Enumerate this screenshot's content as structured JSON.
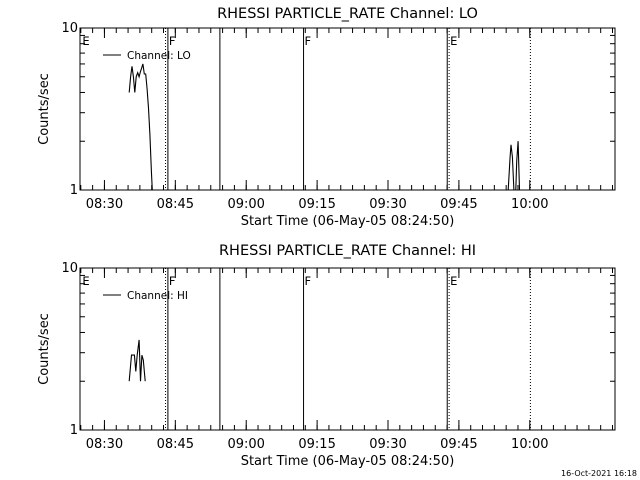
{
  "footer": {
    "date_stamp": "16-Oct-2021 16:18"
  },
  "chart_data": [
    {
      "type": "line",
      "title": "RHESSI PARTICLE_RATE Channel: LO",
      "xlabel": "Start Time (06-May-05 08:24:50)",
      "ylabel": "Counts/sec",
      "x_unit": "minutes since 08:24:50",
      "xlim": [
        0,
        113.2
      ],
      "ylim": [
        1,
        10
      ],
      "y_scale": "log",
      "x_ticks": [
        {
          "t": 5.17,
          "label": "08:30"
        },
        {
          "t": 20.17,
          "label": "08:45"
        },
        {
          "t": 35.17,
          "label": "09:00"
        },
        {
          "t": 50.17,
          "label": "09:15"
        },
        {
          "t": 65.17,
          "label": "09:30"
        },
        {
          "t": 80.17,
          "label": "09:45"
        },
        {
          "t": 95.17,
          "label": "10:00"
        }
      ],
      "y_ticks": [
        {
          "v": 1,
          "label": "1"
        },
        {
          "v": 10,
          "label": "10"
        }
      ],
      "legend": {
        "label": "Channel: LO",
        "position": "top-left"
      },
      "flags": [
        {
          "t": 0.3,
          "text": "E",
          "style": "none"
        },
        {
          "t": 18.1,
          "text": "",
          "style": "dotted"
        },
        {
          "t": 18.6,
          "text": "F",
          "style": "solid"
        },
        {
          "t": 29.6,
          "text": "",
          "style": "solid"
        },
        {
          "t": 47.3,
          "text": "F",
          "style": "solid"
        },
        {
          "t": 77.7,
          "text": "",
          "style": "solid"
        },
        {
          "t": 78.1,
          "text": "E",
          "style": "dotted"
        },
        {
          "t": 95.3,
          "text": "",
          "style": "dotted"
        }
      ],
      "series": [
        {
          "points": [
            [
              10.4,
              4.0
            ],
            [
              10.7,
              5.0
            ],
            [
              11.0,
              5.8
            ],
            [
              11.3,
              5.0
            ],
            [
              11.6,
              4.0
            ],
            [
              11.9,
              5.0
            ],
            [
              12.2,
              5.3
            ],
            [
              12.5,
              5.0
            ],
            [
              12.8,
              5.4
            ],
            [
              13.0,
              5.6
            ],
            [
              13.3,
              6.0
            ],
            [
              13.6,
              5.2
            ],
            [
              13.9,
              5.2
            ],
            [
              14.2,
              4.2
            ],
            [
              14.5,
              3.2
            ],
            [
              14.8,
              2.2
            ],
            [
              15.1,
              1.3
            ],
            [
              15.3,
              1.0
            ]
          ]
        },
        {
          "points": [
            [
              90.6,
              1.0
            ],
            [
              91.0,
              1.6
            ],
            [
              91.2,
              1.9
            ],
            [
              91.5,
              1.6
            ],
            [
              91.8,
              1.0
            ],
            [
              92.2,
              1.0
            ],
            [
              92.4,
              1.5
            ],
            [
              92.7,
              2.0
            ],
            [
              93.0,
              1.0
            ]
          ]
        }
      ]
    },
    {
      "type": "line",
      "title": "RHESSI PARTICLE_RATE Channel: HI",
      "xlabel": "Start Time (06-May-05 08:24:50)",
      "ylabel": "Counts/sec",
      "x_unit": "minutes since 08:24:50",
      "xlim": [
        0,
        113.2
      ],
      "ylim": [
        1,
        10
      ],
      "y_scale": "log",
      "x_ticks": [
        {
          "t": 5.17,
          "label": "08:30"
        },
        {
          "t": 20.17,
          "label": "08:45"
        },
        {
          "t": 35.17,
          "label": "09:00"
        },
        {
          "t": 50.17,
          "label": "09:15"
        },
        {
          "t": 65.17,
          "label": "09:30"
        },
        {
          "t": 80.17,
          "label": "09:45"
        },
        {
          "t": 95.17,
          "label": "10:00"
        }
      ],
      "y_ticks": [
        {
          "v": 1,
          "label": "1"
        },
        {
          "v": 10,
          "label": "10"
        }
      ],
      "legend": {
        "label": "Channel: HI",
        "position": "top-left"
      },
      "flags": [
        {
          "t": 0.3,
          "text": "E",
          "style": "none"
        },
        {
          "t": 18.1,
          "text": "",
          "style": "dotted"
        },
        {
          "t": 18.6,
          "text": "F",
          "style": "solid"
        },
        {
          "t": 29.6,
          "text": "",
          "style": "solid"
        },
        {
          "t": 47.3,
          "text": "F",
          "style": "solid"
        },
        {
          "t": 77.7,
          "text": "",
          "style": "solid"
        },
        {
          "t": 78.1,
          "text": "E",
          "style": "dotted"
        },
        {
          "t": 95.3,
          "text": "",
          "style": "dotted"
        }
      ],
      "series": [
        {
          "points": [
            [
              10.4,
              2.0
            ],
            [
              10.9,
              2.9
            ],
            [
              11.2,
              2.9
            ],
            [
              11.5,
              2.9
            ],
            [
              11.8,
              2.3
            ],
            [
              12.1,
              2.9
            ],
            [
              12.5,
              3.6
            ],
            [
              12.8,
              2.0
            ],
            [
              13.1,
              2.9
            ],
            [
              13.4,
              2.7
            ],
            [
              13.8,
              2.0
            ]
          ]
        }
      ]
    }
  ]
}
